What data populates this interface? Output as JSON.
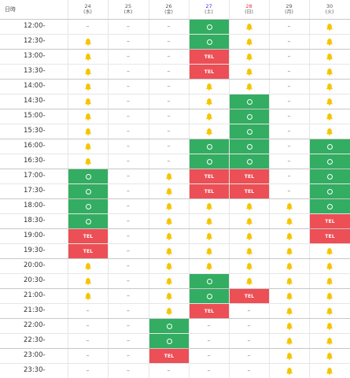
{
  "header": {
    "time_label": "日時",
    "days": [
      {
        "date": "24",
        "weekday": "(水)",
        "kind": "weekday"
      },
      {
        "date": "25",
        "weekday": "(木)",
        "kind": "weekday"
      },
      {
        "date": "26",
        "weekday": "(金)",
        "kind": "weekday"
      },
      {
        "date": "27",
        "weekday": "(土)",
        "kind": "sat"
      },
      {
        "date": "28",
        "weekday": "(日)",
        "kind": "sun"
      },
      {
        "date": "29",
        "weekday": "(月)",
        "kind": "weekday"
      },
      {
        "date": "30",
        "weekday": "(火)",
        "kind": "weekday"
      }
    ]
  },
  "symbols": {
    "dash": "–",
    "tel": "TEL"
  },
  "colors": {
    "available": "#33ad62",
    "tel": "#ec4f55",
    "few_left": "#f5c400"
  },
  "legend": {
    "d": "unavailable",
    "b": "few-left-bell-icon",
    "o": "available-circle",
    "t": "tel-only"
  },
  "rows": [
    {
      "time": "12:00-",
      "cells": [
        "d",
        "d",
        "d",
        "o",
        "b",
        "d",
        "b"
      ]
    },
    {
      "time": "12:30-",
      "cells": [
        "b",
        "d",
        "d",
        "o",
        "b",
        "d",
        "b"
      ]
    },
    {
      "time": "13:00-",
      "cells": [
        "b",
        "d",
        "d",
        "t",
        "b",
        "d",
        "b"
      ]
    },
    {
      "time": "13:30-",
      "cells": [
        "b",
        "d",
        "d",
        "t",
        "b",
        "d",
        "b"
      ]
    },
    {
      "time": "14:00-",
      "cells": [
        "b",
        "d",
        "d",
        "b",
        "b",
        "d",
        "b"
      ]
    },
    {
      "time": "14:30-",
      "cells": [
        "b",
        "d",
        "d",
        "b",
        "o",
        "d",
        "b"
      ]
    },
    {
      "time": "15:00-",
      "cells": [
        "b",
        "d",
        "d",
        "b",
        "o",
        "d",
        "b"
      ]
    },
    {
      "time": "15:30-",
      "cells": [
        "b",
        "d",
        "d",
        "b",
        "o",
        "d",
        "b"
      ]
    },
    {
      "time": "16:00-",
      "cells": [
        "b",
        "d",
        "d",
        "o",
        "o",
        "d",
        "o"
      ]
    },
    {
      "time": "16:30-",
      "cells": [
        "b",
        "d",
        "d",
        "o",
        "o",
        "d",
        "o"
      ]
    },
    {
      "time": "17:00-",
      "cells": [
        "o",
        "d",
        "b",
        "t",
        "t",
        "d",
        "o"
      ]
    },
    {
      "time": "17:30-",
      "cells": [
        "o",
        "d",
        "b",
        "t",
        "t",
        "d",
        "o"
      ]
    },
    {
      "time": "18:00-",
      "cells": [
        "o",
        "d",
        "b",
        "b",
        "b",
        "b",
        "o"
      ]
    },
    {
      "time": "18:30-",
      "cells": [
        "o",
        "d",
        "b",
        "b",
        "b",
        "b",
        "t"
      ]
    },
    {
      "time": "19:00-",
      "cells": [
        "t",
        "d",
        "b",
        "b",
        "b",
        "b",
        "t"
      ]
    },
    {
      "time": "19:30-",
      "cells": [
        "t",
        "d",
        "b",
        "b",
        "b",
        "b",
        "b"
      ]
    },
    {
      "time": "20:00-",
      "cells": [
        "b",
        "d",
        "b",
        "b",
        "b",
        "b",
        "b"
      ]
    },
    {
      "time": "20:30-",
      "cells": [
        "b",
        "d",
        "b",
        "o",
        "b",
        "b",
        "b"
      ]
    },
    {
      "time": "21:00-",
      "cells": [
        "b",
        "d",
        "b",
        "o",
        "t",
        "b",
        "b"
      ]
    },
    {
      "time": "21:30-",
      "cells": [
        "d",
        "d",
        "b",
        "t",
        "d",
        "b",
        "b"
      ]
    },
    {
      "time": "22:00-",
      "cells": [
        "d",
        "d",
        "o",
        "d",
        "d",
        "b",
        "b"
      ]
    },
    {
      "time": "22:30-",
      "cells": [
        "d",
        "d",
        "o",
        "d",
        "d",
        "b",
        "b"
      ]
    },
    {
      "time": "23:00-",
      "cells": [
        "d",
        "d",
        "t",
        "d",
        "d",
        "b",
        "b"
      ]
    },
    {
      "time": "23:30-",
      "cells": [
        "d",
        "d",
        "d",
        "d",
        "d",
        "b",
        "b"
      ]
    }
  ]
}
